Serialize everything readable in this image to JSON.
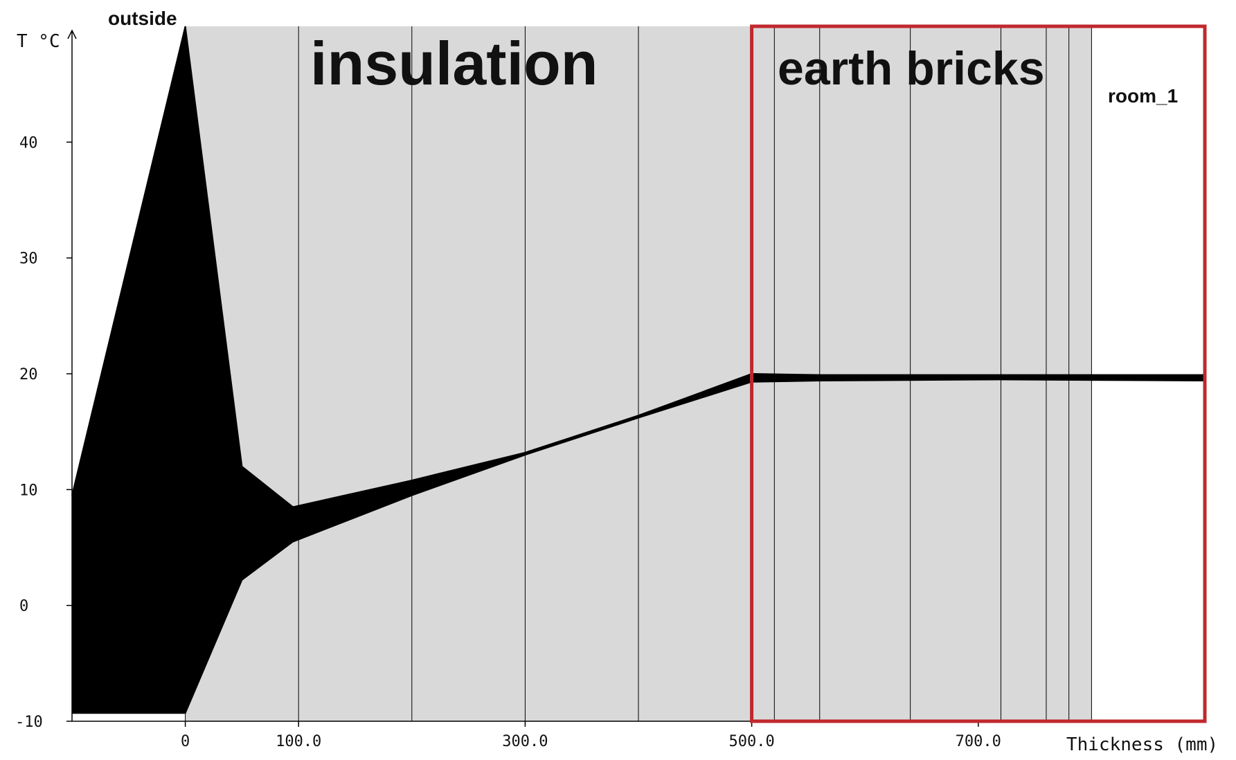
{
  "chart_data": {
    "type": "line",
    "title": "",
    "xlabel": "Thickness (mm)",
    "ylabel": "T °C",
    "xlim": [
      -100,
      900
    ],
    "ylim": [
      -10,
      50
    ],
    "y_ticks": [
      40,
      30,
      20,
      10,
      0,
      -10
    ],
    "x_ticks": [
      {
        "value": 0,
        "label": "0"
      },
      {
        "value": 100,
        "label": "100.0"
      },
      {
        "value": 300,
        "label": "300.0"
      },
      {
        "value": 500,
        "label": "500.0"
      },
      {
        "value": 700,
        "label": "700.0"
      }
    ],
    "layer_boundaries": [
      0,
      100,
      200,
      300,
      400,
      500,
      520,
      560,
      640,
      720,
      760,
      780,
      800
    ],
    "zone_labels": {
      "outside": "outside",
      "insulation": "insulation",
      "earth_bricks": "earth bricks",
      "room": "room_1"
    },
    "envelope": {
      "x": [
        -100,
        0,
        50,
        95,
        200,
        300,
        400,
        500,
        560,
        720,
        900
      ],
      "upper": [
        9.5,
        50,
        12,
        8.5,
        10.8,
        13.2,
        16.4,
        20.0,
        19.9,
        19.9,
        19.9
      ],
      "lower": [
        -9.3,
        -9.3,
        2.2,
        5.5,
        9.5,
        13.0,
        16.2,
        19.3,
        19.4,
        19.5,
        19.4
      ]
    },
    "highlight_box": {
      "from_x": 500,
      "to_x": 900,
      "color": "#c0282d"
    },
    "colors": {
      "layer_fill": "#d9d9d9",
      "curve": "#000000"
    }
  }
}
